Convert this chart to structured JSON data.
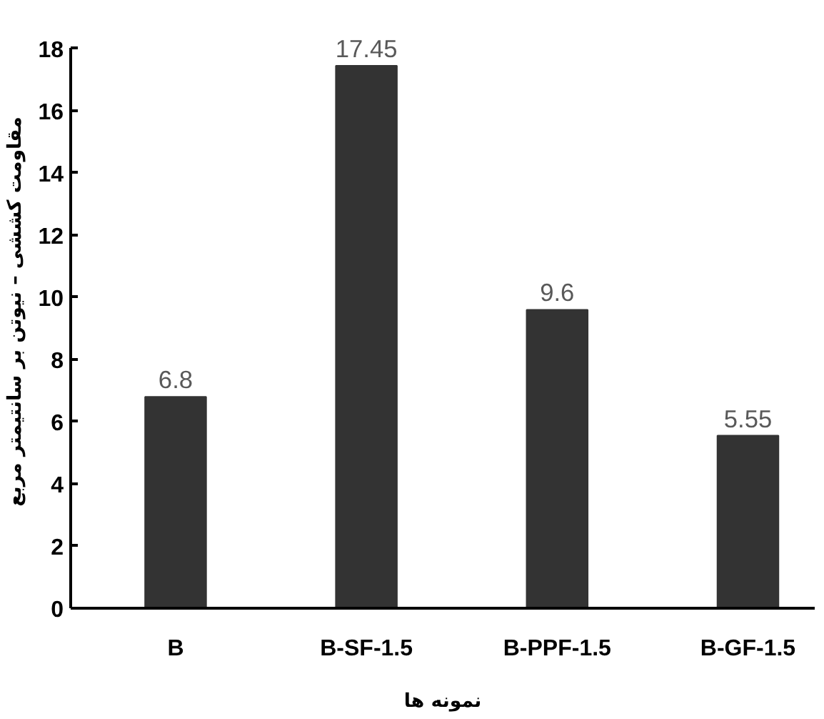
{
  "chart_data": {
    "type": "bar",
    "categories": [
      "B",
      "B-SF-1.5",
      "B-PPF-1.5",
      "B-GF-1.5"
    ],
    "values": [
      6.8,
      17.45,
      9.6,
      5.55
    ],
    "color": "#333333",
    "xlabel": "نمونه ها",
    "ylabel": "مقاومت کششی – نیوتن بر سانتیمتر مربع",
    "ylim": [
      0,
      18
    ],
    "yticks": [
      0,
      2,
      4,
      6,
      8,
      10,
      12,
      14,
      16,
      18
    ],
    "grid": false,
    "data_labels": true
  }
}
